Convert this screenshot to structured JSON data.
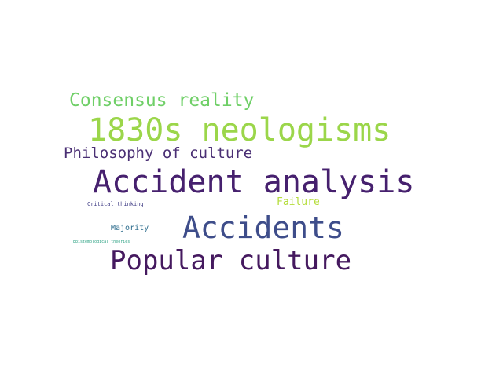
{
  "words": [
    {
      "text": "1830s neologisms",
      "color": "#9bd64a"
    },
    {
      "text": "Accident analysis",
      "color": "#46206e"
    },
    {
      "text": "Accidents",
      "color": "#3e4d8a"
    },
    {
      "text": "Popular culture",
      "color": "#45195f"
    },
    {
      "text": "Consensus reality",
      "color": "#6fcf67"
    },
    {
      "text": "Philosophy of culture",
      "color": "#4a2f74"
    },
    {
      "text": "Failure",
      "color": "#b5dd3c"
    },
    {
      "text": "Majority",
      "color": "#2f6e8e"
    },
    {
      "text": "Critical thinking",
      "color": "#3e3b84"
    },
    {
      "text": "Epistemological theories",
      "color": "#2aa182"
    }
  ]
}
